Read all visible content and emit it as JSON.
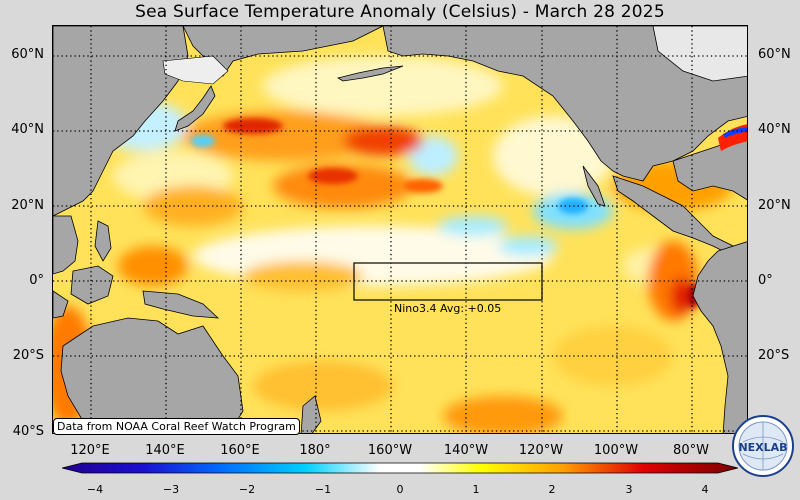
{
  "title": "Sea Surface Temperature Anomaly (Celsius) - March 28 2025",
  "lat_labels": [
    "60°N",
    "40°N",
    "20°N",
    "0°",
    "20°S",
    "40°S"
  ],
  "lon_labels": [
    "120°E",
    "140°E",
    "160°E",
    "180°",
    "160°W",
    "140°W",
    "120°W",
    "100°W",
    "80°W"
  ],
  "nino_box": {
    "label": "Nino3.4 Avg: +0.05"
  },
  "credit": "Data from NOAA Coral Reef Watch Program",
  "colorbar": {
    "ticks": [
      "−4",
      "−3",
      "−2",
      "−1",
      "0",
      "1",
      "2",
      "3",
      "4"
    ],
    "colors": [
      "#23008f",
      "#0050ff",
      "#00c8ff",
      "#ffffff",
      "#ffff00",
      "#ff9900",
      "#e00000",
      "#7a0000"
    ]
  },
  "logo": {
    "text": "NEXLAB"
  },
  "colors": {
    "land": "#a6a6a6",
    "ocean_base": "#ffe25a",
    "background": "#d9d9d9"
  }
}
